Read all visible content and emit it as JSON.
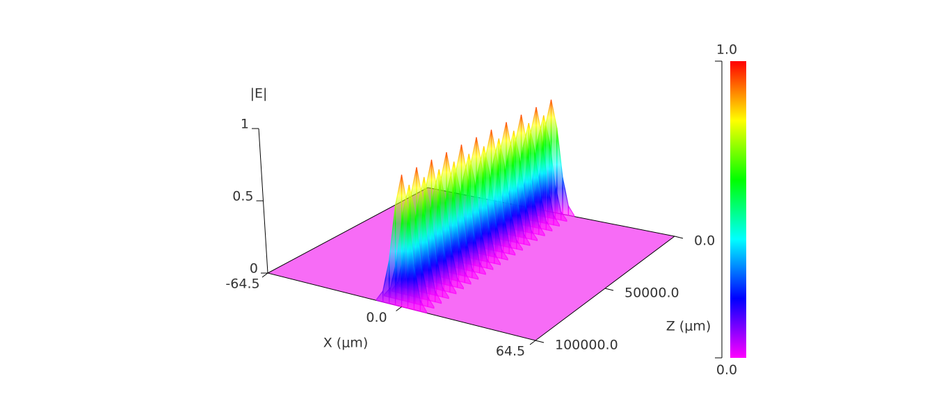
{
  "chart_data": {
    "type": "surface3d",
    "zlabel": "|E|",
    "xlabel": "X (μm)",
    "ylabel": "Z (μm)",
    "xlim": [
      -64.5,
      64.5
    ],
    "xticks": [
      -64.5,
      {
        "value": 0,
        "label": "0.0"
      },
      64.5
    ],
    "ylim": [
      0,
      100000
    ],
    "yticks": [
      {
        "value": 0,
        "label": "0.0"
      },
      {
        "value": 50000,
        "label": "50000.0"
      },
      {
        "value": 100000,
        "label": "100000.0"
      }
    ],
    "zlim": [
      0,
      1
    ],
    "zticks": [
      0,
      0.5,
      1
    ],
    "clim": [
      0,
      1
    ],
    "cticks": [
      {
        "value": 0,
        "label": "0.0"
      },
      {
        "value": 1,
        "label": "1.0"
      }
    ],
    "colormap": [
      "#ff00ff",
      "#0000ff",
      "#00ffff",
      "#00ff00",
      "#ffff00",
      "#ff0000"
    ],
    "floor_color": "#f76cf6",
    "x": [
      -12,
      -9,
      -6,
      -3,
      0,
      3,
      6,
      9,
      12
    ],
    "z": [
      0,
      5000,
      10000,
      15000,
      20000,
      25000,
      30000,
      35000,
      40000,
      45000,
      50000,
      55000,
      60000,
      65000,
      70000,
      75000,
      80000,
      85000,
      90000,
      95000,
      100000
    ],
    "values": [
      [
        0.01,
        0.08,
        0.31,
        0.72,
        0.95,
        0.72,
        0.31,
        0.08,
        0.01
      ],
      [
        0.01,
        0.07,
        0.28,
        0.64,
        0.85,
        0.64,
        0.28,
        0.07,
        0.01
      ],
      [
        0.01,
        0.08,
        0.31,
        0.72,
        0.95,
        0.72,
        0.31,
        0.08,
        0.01
      ],
      [
        0.01,
        0.07,
        0.28,
        0.64,
        0.85,
        0.64,
        0.28,
        0.07,
        0.01
      ],
      [
        0.01,
        0.08,
        0.31,
        0.72,
        0.95,
        0.72,
        0.31,
        0.08,
        0.01
      ],
      [
        0.01,
        0.07,
        0.28,
        0.64,
        0.85,
        0.64,
        0.28,
        0.07,
        0.01
      ],
      [
        0.01,
        0.08,
        0.31,
        0.72,
        0.95,
        0.72,
        0.31,
        0.08,
        0.01
      ],
      [
        0.01,
        0.07,
        0.28,
        0.64,
        0.85,
        0.64,
        0.28,
        0.07,
        0.01
      ],
      [
        0.01,
        0.08,
        0.31,
        0.72,
        0.95,
        0.72,
        0.31,
        0.08,
        0.01
      ],
      [
        0.01,
        0.07,
        0.28,
        0.64,
        0.85,
        0.64,
        0.28,
        0.07,
        0.01
      ],
      [
        0.01,
        0.08,
        0.31,
        0.72,
        0.95,
        0.72,
        0.31,
        0.08,
        0.01
      ],
      [
        0.01,
        0.07,
        0.28,
        0.64,
        0.85,
        0.64,
        0.28,
        0.07,
        0.01
      ],
      [
        0.01,
        0.08,
        0.31,
        0.72,
        0.95,
        0.72,
        0.31,
        0.08,
        0.01
      ],
      [
        0.01,
        0.07,
        0.28,
        0.64,
        0.85,
        0.64,
        0.28,
        0.07,
        0.01
      ],
      [
        0.01,
        0.08,
        0.31,
        0.72,
        0.95,
        0.72,
        0.31,
        0.08,
        0.01
      ],
      [
        0.01,
        0.07,
        0.28,
        0.64,
        0.85,
        0.64,
        0.28,
        0.07,
        0.01
      ],
      [
        0.01,
        0.08,
        0.31,
        0.72,
        0.95,
        0.72,
        0.31,
        0.08,
        0.01
      ],
      [
        0.01,
        0.07,
        0.28,
        0.64,
        0.85,
        0.64,
        0.28,
        0.07,
        0.01
      ],
      [
        0.01,
        0.08,
        0.31,
        0.72,
        0.95,
        0.72,
        0.31,
        0.08,
        0.01
      ],
      [
        0.01,
        0.07,
        0.28,
        0.64,
        0.85,
        0.64,
        0.28,
        0.07,
        0.01
      ],
      [
        0.01,
        0.08,
        0.31,
        0.72,
        0.95,
        0.72,
        0.31,
        0.08,
        0.01
      ]
    ]
  }
}
